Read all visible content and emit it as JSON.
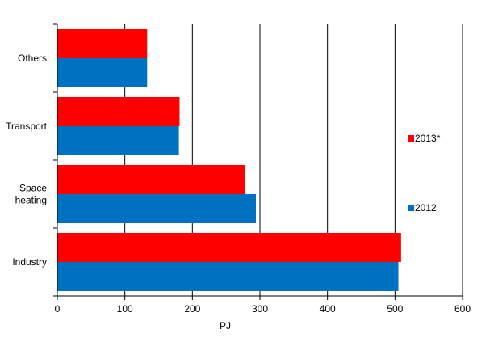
{
  "chart_data": {
    "type": "bar",
    "orientation": "horizontal",
    "categories": [
      "Industry",
      "Space heating",
      "Transport",
      "Others"
    ],
    "category_lines": [
      [
        "Industry"
      ],
      [
        "Space",
        "heating"
      ],
      [
        "Transport"
      ],
      [
        "Others"
      ]
    ],
    "series": [
      {
        "name": "2013*",
        "color": "#ff0000",
        "values": [
          509,
          278,
          181,
          133
        ]
      },
      {
        "name": "2012",
        "color": "#0070c0",
        "values": [
          505,
          294,
          180,
          133
        ]
      }
    ],
    "xlabel": "PJ",
    "xlim": [
      0,
      600
    ],
    "xticks": [
      0,
      100,
      200,
      300,
      400,
      500,
      600
    ],
    "grid": "vertical",
    "legend_placement": "right"
  }
}
